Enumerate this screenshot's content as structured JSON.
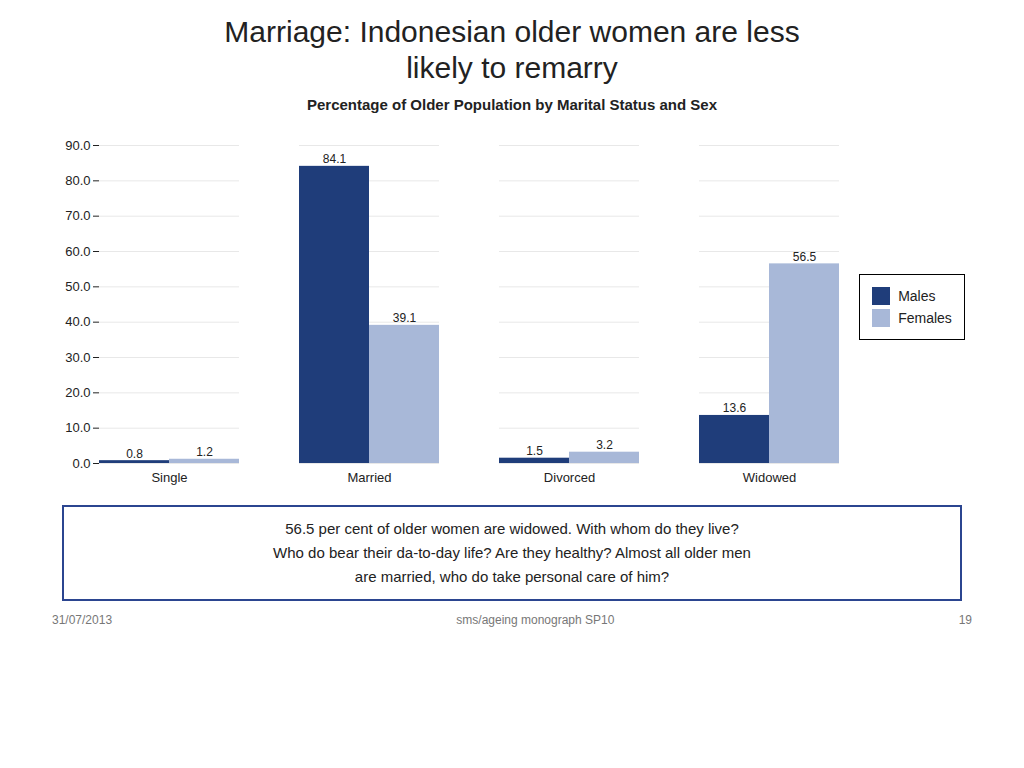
{
  "chart_data": {
    "type": "bar",
    "title": "Marriage: Indonesian older women are less\nlikely to remarry",
    "subtitle": "Percentage of Older Population by Marital Status and Sex",
    "categories": [
      "Single",
      "Married",
      "Divorced",
      "Widowed"
    ],
    "series": [
      {
        "name": "Males",
        "color": "#1F3D7A",
        "values": [
          0.8,
          84.1,
          1.5,
          13.6
        ]
      },
      {
        "name": "Females",
        "color": "#A8B8D8",
        "values": [
          1.2,
          39.1,
          3.2,
          56.5
        ]
      }
    ],
    "ylim": [
      0,
      90
    ],
    "yticks": [
      {
        "value": 0,
        "label": "0.0"
      },
      {
        "value": 10,
        "label": "10.0"
      },
      {
        "value": 20,
        "label": "20.0"
      },
      {
        "value": 30,
        "label": "30.0"
      },
      {
        "value": 40,
        "label": "40.0"
      },
      {
        "value": 50,
        "label": "50.0"
      },
      {
        "value": 60,
        "label": "60.0"
      },
      {
        "value": 70,
        "label": "70.0"
      },
      {
        "value": 80,
        "label": "80.0"
      },
      {
        "value": 90,
        "label": "90.0"
      }
    ],
    "grid": true,
    "legend": "right",
    "data_labels": true,
    "annotation": "56.5 per cent of older women are widowed. With whom do they live?\nWho do bear their da-to-day life? Are they healthy? Almost all older men\nare married, who do take personal care of him?",
    "footer": [
      "31/07/2013",
      "sms/ageing monograph SP10",
      "19"
    ]
  }
}
